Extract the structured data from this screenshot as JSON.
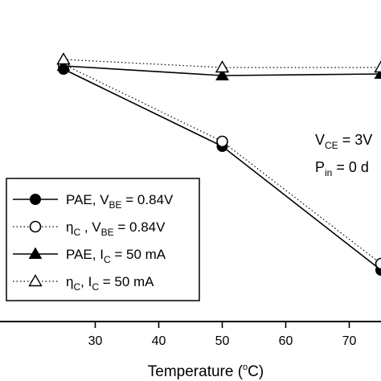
{
  "chart_data": {
    "type": "line",
    "xlabel": "Temperature (°C)",
    "xlabel_parts": {
      "main": "Temperature (",
      "sup": "o",
      "tail": "C)"
    },
    "xlim": [
      15,
      75
    ],
    "ylim": [
      0,
      100
    ],
    "x_ticks": [
      30,
      40,
      50,
      60,
      70
    ],
    "grid": false,
    "legend_placement": "bottom-left",
    "annotation": {
      "line1": {
        "main": "V",
        "sub": "CE",
        "tail": " = 3V"
      },
      "line2": {
        "main": "P",
        "sub": "in",
        "tail": " = 0 d"
      }
    },
    "series": [
      {
        "name": "PAE, VBE = 0.84V",
        "label_parts": {
          "a": "PAE, V",
          "sub": "BE",
          "b": " = 0.84V"
        },
        "marker": "filled-circle",
        "line": "solid",
        "x": [
          25,
          50,
          75
        ],
        "y": [
          78.5,
          54.5,
          16
        ]
      },
      {
        "name": "ηC , VBE = 0.84V",
        "label_parts": {
          "a": "η",
          "sub1": "C",
          "b": " , V",
          "sub2": "BE",
          "c": " = 0.84V"
        },
        "marker": "open-circle",
        "line": "dotted",
        "x": [
          25,
          50,
          75
        ],
        "y": [
          80,
          56,
          18
        ]
      },
      {
        "name": "PAE, IC = 50 mA",
        "label_parts": {
          "a": "PAE, I",
          "sub": "C",
          "b": " = 50 mA"
        },
        "marker": "filled-triangle",
        "line": "solid",
        "x": [
          25,
          50,
          75
        ],
        "y": [
          79.5,
          76.5,
          77
        ]
      },
      {
        "name": "ηC, IC = 50 mA",
        "label_parts": {
          "a": "η",
          "sub1": "C",
          "b": ", I",
          "sub2": "C",
          "c": " = 50 mA"
        },
        "marker": "open-triangle",
        "line": "dotted",
        "x": [
          25,
          50,
          75
        ],
        "y": [
          81.5,
          79,
          79
        ]
      }
    ]
  }
}
